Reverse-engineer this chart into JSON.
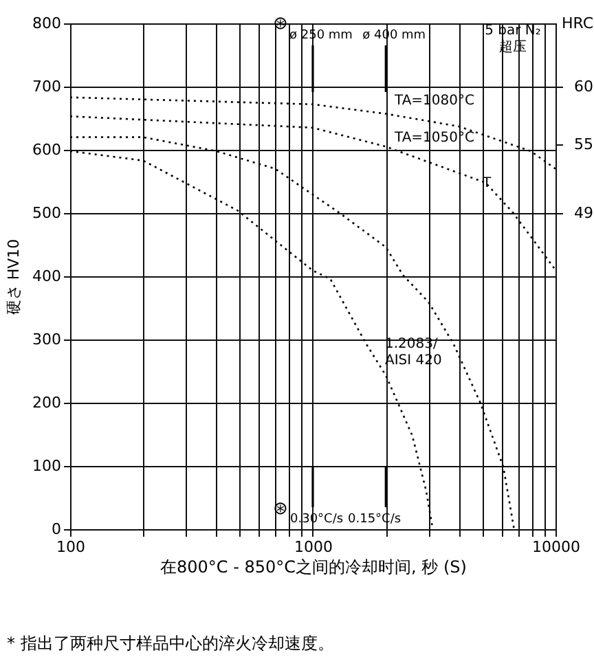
{
  "chart_data": {
    "type": "line",
    "xlabel": "在800°C - 850°C之间的冷却时间, 秒 (S)",
    "ylabel": "硬さ HV10",
    "y2label": "HRC",
    "log": "x",
    "grid": true,
    "marker": "none",
    "line_style": "dotted",
    "xlim": [
      100,
      10000
    ],
    "xticks": [
      100,
      {
        "value": 200,
        "label": null
      },
      {
        "value": 300,
        "label": null
      },
      {
        "value": 400,
        "label": null
      },
      {
        "value": 500,
        "label": null
      },
      {
        "value": 600,
        "label": null
      },
      {
        "value": 700,
        "label": null
      },
      {
        "value": 800,
        "label": null
      },
      {
        "value": 900,
        "label": null
      },
      1000,
      {
        "value": 2000,
        "label": null
      },
      {
        "value": 3000,
        "label": null
      },
      {
        "value": 4000,
        "label": null
      },
      {
        "value": 5000,
        "label": null
      },
      {
        "value": 6000,
        "label": null
      },
      {
        "value": 7000,
        "label": null
      },
      {
        "value": 8000,
        "label": null
      },
      {
        "value": 9000,
        "label": null
      },
      10000
    ],
    "ylim": [
      0,
      800
    ],
    "yticks": [
      0,
      100,
      200,
      300,
      400,
      500,
      600,
      700,
      800
    ],
    "y2lim": [
      21.5,
      65.5
    ],
    "y2ticks": [
      49,
      55,
      60
    ],
    "series": [
      {
        "color": "#000000",
        "x": [
          100,
          1000,
          2000,
          4000,
          7900,
          10000
        ],
        "values": [
          683,
          672,
          657,
          637,
          598,
          570
        ]
      },
      {
        "color": "#000000",
        "x": [
          100,
          1000,
          2000,
          5150,
          6700,
          10000
        ],
        "values": [
          653,
          635,
          605,
          548,
          500,
          410
        ]
      },
      {
        "color": "#000000",
        "x": [
          100,
          200,
          400,
          700,
          1290,
          2000,
          2350,
          3000,
          3800,
          4900,
          6100,
          6750
        ],
        "values": [
          620,
          620,
          598,
          570,
          500,
          446,
          402,
          359,
          293,
          200,
          98,
          0
        ]
      },
      {
        "color": "#000000",
        "x": [
          100,
          200,
          490,
          1000,
          1180,
          1660,
          2000,
          2570,
          2930,
          3120
        ],
        "values": [
          598,
          583,
          504,
          409,
          396,
          293,
          243,
          148,
          61,
          0
        ]
      }
    ],
    "ref_lines": [
      {
        "axis": "x",
        "value": 1000,
        "label": "ø 250 mm"
      },
      {
        "axis": "x",
        "value": 2000,
        "label": "ø 400 mm"
      }
    ],
    "annotations": [
      "TA=1080°C",
      "TA=1050°C",
      "T",
      "1.2083/\nAISI 420",
      "0.30°C/s",
      "0.15°C/s",
      "⊛",
      "⊛",
      "5 bar N₂\n超压",
      "* 指出了两种尺寸样品中心的淬火冷却速度。"
    ]
  }
}
